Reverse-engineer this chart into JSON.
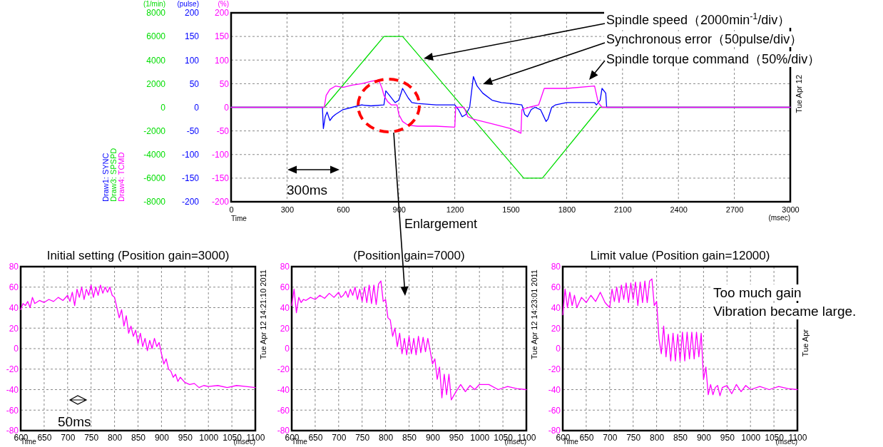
{
  "chart_data": [
    {
      "type": "line",
      "xlabel": "Time",
      "ylabel": "(pulse)",
      "y2label": "(%)",
      "y3label": "(1/min)",
      "xlim": [
        0,
        3000
      ],
      "xticks": [
        0,
        300,
        600,
        900,
        1200,
        1500,
        1800,
        2100,
        2400,
        2700,
        3000
      ],
      "ylim": [
        -200,
        200
      ],
      "yticks": [
        -200,
        -150,
        -100,
        -50,
        0,
        50,
        100,
        150,
        200
      ],
      "y2lim": [
        -200,
        200
      ],
      "y2ticks": [
        -200,
        -150,
        -100,
        -50,
        0,
        50,
        100,
        150,
        200
      ],
      "y3lim": [
        -8000,
        8000
      ],
      "y3ticks": [
        -8000,
        -6000,
        -4000,
        -2000,
        0,
        2000,
        4000,
        6000,
        8000
      ],
      "grid": true,
      "legend": "left",
      "series": [
        {
          "name": "Draw1: SYNC",
          "color": "#0000ff",
          "x": [
            0,
            490,
            495,
            505,
            515,
            530,
            545,
            560,
            600,
            650,
            700,
            750,
            820,
            830,
            850,
            880,
            900,
            920,
            950,
            970,
            1000,
            1100,
            1200,
            1220,
            1240,
            1260,
            1280,
            1300,
            1320,
            1350,
            1400,
            1450,
            1500,
            1560,
            1575,
            1590,
            1610,
            1630,
            1660,
            1690,
            1700,
            1720,
            1740,
            1800,
            1900,
            1950,
            1960,
            1980,
            1990,
            2010,
            2015,
            2020,
            2100,
            3000
          ],
          "values": [
            0,
            0,
            -45,
            -20,
            -10,
            -28,
            -20,
            -15,
            -5,
            0,
            5,
            3,
            5,
            35,
            25,
            10,
            15,
            40,
            20,
            10,
            8,
            5,
            5,
            -5,
            -20,
            -15,
            0,
            65,
            45,
            30,
            15,
            10,
            8,
            5,
            -15,
            -20,
            -5,
            0,
            -5,
            -30,
            -25,
            0,
            5,
            10,
            10,
            10,
            5,
            15,
            40,
            30,
            0,
            0,
            0,
            0
          ]
        },
        {
          "name": "Draw3: SPSPD",
          "color": "#00dd00",
          "axis": "y3",
          "x": [
            0,
            500,
            820,
            920,
            1570,
            1670,
            1980,
            3000
          ],
          "values": [
            0,
            0,
            6000,
            6000,
            -6000,
            -6000,
            0,
            0
          ]
        },
        {
          "name": "Draw4: TCMD",
          "color": "#ff00ff",
          "axis": "y2",
          "x": [
            0,
            490,
            500,
            510,
            530,
            560,
            600,
            650,
            700,
            750,
            790,
            800,
            810,
            820,
            840,
            860,
            890,
            900,
            920,
            950,
            1000,
            1100,
            1200,
            1205,
            1250,
            1270,
            1300,
            1400,
            1500,
            1555,
            1560,
            1600,
            1650,
            1680,
            1700,
            1800,
            1950,
            1970,
            1990,
            3000
          ],
          "values": [
            0,
            0,
            0,
            25,
            38,
            45,
            42,
            47,
            50,
            55,
            58,
            50,
            40,
            25,
            12,
            5,
            5,
            -15,
            -30,
            -38,
            -40,
            -40,
            -42,
            0,
            0,
            -20,
            -25,
            -35,
            -45,
            -55,
            -5,
            0,
            5,
            40,
            40,
            40,
            45,
            10,
            0,
            0
          ]
        }
      ],
      "annotations": [
        "Spindle speed（2000min$^{-1}$/div）",
        "Synchronous error（50pulse/div）",
        "Spindle torque command（50%/div）",
        "300ms",
        "Enlargement",
        "(msec)",
        "Tue Apr 12"
      ]
    },
    {
      "type": "line",
      "title": "Initial setting (Position gain=3000)",
      "xlabel": "Time",
      "xlim": [
        600,
        1100
      ],
      "xticks": [
        600,
        650,
        700,
        750,
        800,
        850,
        900,
        950,
        1000,
        1050,
        1100
      ],
      "ylim": [
        -80,
        80
      ],
      "yticks": [
        -80,
        -60,
        -40,
        -20,
        0,
        20,
        40,
        60,
        80
      ],
      "grid": true,
      "series": [
        {
          "color": "#ff00ff",
          "x": [
            600,
            605,
            610,
            615,
            620,
            625,
            630,
            640,
            650,
            660,
            670,
            680,
            690,
            700,
            705,
            710,
            715,
            720,
            725,
            730,
            735,
            740,
            745,
            750,
            755,
            760,
            765,
            770,
            775,
            780,
            785,
            790,
            795,
            800,
            805,
            810,
            815,
            820,
            825,
            830,
            835,
            840,
            845,
            850,
            855,
            860,
            865,
            870,
            875,
            880,
            885,
            890,
            895,
            900,
            905,
            910,
            915,
            920,
            925,
            930,
            935,
            940,
            950,
            960,
            970,
            980,
            990,
            1000,
            1020,
            1040,
            1060,
            1080,
            1100
          ],
          "values": [
            38,
            44,
            42,
            46,
            40,
            50,
            44,
            47,
            45,
            48,
            46,
            50,
            47,
            52,
            46,
            55,
            42,
            58,
            50,
            60,
            48,
            58,
            52,
            62,
            50,
            60,
            52,
            62,
            54,
            60,
            55,
            60,
            52,
            50,
            40,
            30,
            38,
            22,
            32,
            15,
            22,
            12,
            18,
            5,
            15,
            2,
            10,
            -2,
            8,
            0,
            10,
            2,
            6,
            -5,
            -15,
            -10,
            -20,
            -22,
            -28,
            -25,
            -32,
            -28,
            -33,
            -35,
            -34,
            -38,
            -36,
            -37,
            -36,
            -38,
            -36,
            -37,
            -38
          ]
        }
      ],
      "annotations": [
        "(msec)",
        "Tue Apr 12 14:21:10 2011",
        "50ms"
      ]
    },
    {
      "type": "line",
      "title": "(Position gain=7000)",
      "xlabel": "Time",
      "xlim": [
        600,
        1100
      ],
      "xticks": [
        600,
        650,
        700,
        750,
        800,
        850,
        900,
        950,
        1000,
        1050,
        1100
      ],
      "ylim": [
        -80,
        80
      ],
      "yticks": [
        -80,
        -60,
        -40,
        -20,
        0,
        20,
        40,
        60,
        80
      ],
      "grid": true,
      "series": [
        {
          "color": "#ff00ff",
          "x": [
            600,
            605,
            610,
            615,
            620,
            625,
            630,
            640,
            650,
            660,
            670,
            680,
            690,
            700,
            705,
            710,
            715,
            720,
            725,
            730,
            735,
            740,
            745,
            750,
            755,
            760,
            765,
            770,
            775,
            780,
            785,
            790,
            795,
            800,
            805,
            810,
            815,
            820,
            825,
            830,
            835,
            840,
            845,
            850,
            855,
            860,
            865,
            870,
            875,
            880,
            885,
            890,
            895,
            900,
            905,
            910,
            915,
            920,
            925,
            930,
            935,
            940,
            950,
            960,
            970,
            980,
            990,
            1000,
            1020,
            1040,
            1060,
            1080,
            1100
          ],
          "values": [
            42,
            58,
            35,
            50,
            45,
            48,
            47,
            50,
            48,
            52,
            49,
            54,
            50,
            55,
            50,
            52,
            56,
            50,
            58,
            52,
            60,
            48,
            58,
            46,
            60,
            45,
            62,
            44,
            62,
            43,
            63,
            66,
            46,
            48,
            30,
            28,
            12,
            20,
            2,
            15,
            -5,
            10,
            -6,
            12,
            -5,
            10,
            -6,
            12,
            -4,
            11,
            -3,
            10,
            -2,
            -15,
            -10,
            -30,
            -18,
            -48,
            -25,
            -45,
            -25,
            -50,
            -42,
            -35,
            -42,
            -36,
            -40,
            -35,
            -35,
            -40,
            -37,
            -39,
            -40
          ]
        }
      ],
      "annotations": [
        "(msec)",
        "Tue Apr 12 14:23:01 2011"
      ]
    },
    {
      "type": "line",
      "title": "Limit value (Position gain=12000)",
      "xlabel": "Time",
      "xlim": [
        600,
        1100
      ],
      "xticks": [
        600,
        650,
        700,
        750,
        800,
        850,
        900,
        950,
        1000,
        1050,
        1100
      ],
      "ylim": [
        -80,
        80
      ],
      "yticks": [
        -80,
        -60,
        -40,
        -20,
        0,
        20,
        40,
        60,
        80
      ],
      "grid": true,
      "series": [
        {
          "color": "#ff00ff",
          "x": [
            600,
            605,
            610,
            615,
            620,
            625,
            630,
            640,
            650,
            660,
            670,
            680,
            690,
            700,
            705,
            710,
            715,
            720,
            725,
            730,
            735,
            740,
            745,
            750,
            755,
            760,
            765,
            770,
            775,
            780,
            785,
            790,
            795,
            800,
            805,
            810,
            815,
            820,
            825,
            830,
            835,
            840,
            845,
            850,
            855,
            860,
            865,
            870,
            875,
            880,
            885,
            890,
            895,
            900,
            905,
            910,
            915,
            920,
            925,
            930,
            935,
            940,
            950,
            960,
            970,
            980,
            990,
            1000,
            1020,
            1040,
            1060,
            1080,
            1100
          ],
          "values": [
            33,
            58,
            40,
            55,
            42,
            52,
            40,
            50,
            45,
            52,
            46,
            55,
            45,
            40,
            58,
            46,
            60,
            45,
            62,
            48,
            64,
            45,
            64,
            48,
            65,
            42,
            65,
            45,
            66,
            45,
            66,
            68,
            42,
            46,
            10,
            -5,
            22,
            -8,
            14,
            -12,
            15,
            -12,
            14,
            -12,
            16,
            -12,
            16,
            -10,
            16,
            -10,
            16,
            -8,
            15,
            -30,
            -18,
            -45,
            -35,
            -45,
            -38,
            -36,
            -46,
            -38,
            -36,
            -44,
            -35,
            -42,
            -36,
            -40,
            -37,
            -40,
            -37,
            -39,
            -40
          ]
        }
      ],
      "annotations": [
        "(msec)",
        "Tue Apr",
        "Too much gain",
        "Vibration became large."
      ]
    }
  ]
}
